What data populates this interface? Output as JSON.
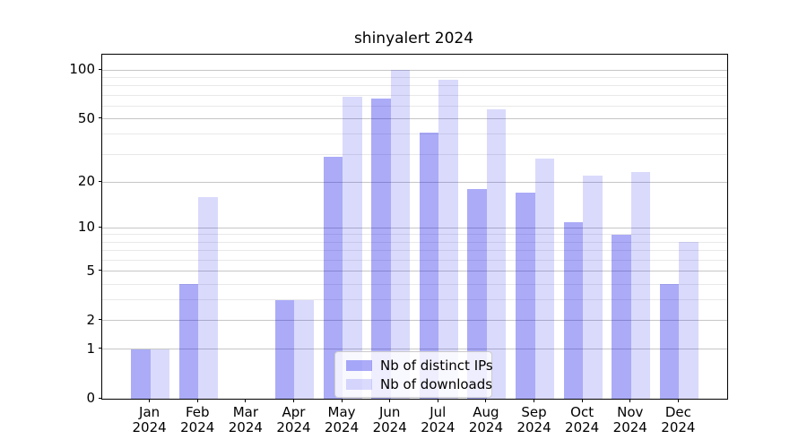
{
  "title": "shinyalert 2024",
  "chart_data": {
    "type": "bar",
    "title": "shinyalert 2024",
    "categories": [
      "Jan",
      "Feb",
      "Mar",
      "Apr",
      "May",
      "Jun",
      "Jul",
      "Aug",
      "Sep",
      "Oct",
      "Nov",
      "Dec"
    ],
    "category_year": "2024",
    "series": [
      {
        "name": "Nb of distinct IPs",
        "color": "rgba(10,10,235,0.34)",
        "values": [
          1,
          4,
          0,
          3,
          29,
          67,
          41,
          18,
          17,
          11,
          9,
          4
        ]
      },
      {
        "name": "Nb of downloads",
        "color": "rgba(10,10,235,0.15)",
        "values": [
          1,
          16,
          0,
          3,
          68,
          100,
          87,
          57,
          28,
          22,
          23,
          8
        ]
      }
    ],
    "xlabel": "",
    "ylabel": "",
    "y_axis": {
      "scale": "log1p",
      "max": 100,
      "major_ticks": [
        0,
        1,
        2,
        5,
        10,
        20,
        50,
        100
      ],
      "minor_ticks": [
        3,
        4,
        6,
        7,
        8,
        9,
        30,
        40,
        60,
        70,
        80,
        90
      ]
    },
    "grid": "horizontal",
    "legend_position": "bottom-center",
    "colors": {
      "major_gridline": "#c6c6c6",
      "minor_gridline": "#e9e9e9",
      "axis": "#000000"
    }
  }
}
